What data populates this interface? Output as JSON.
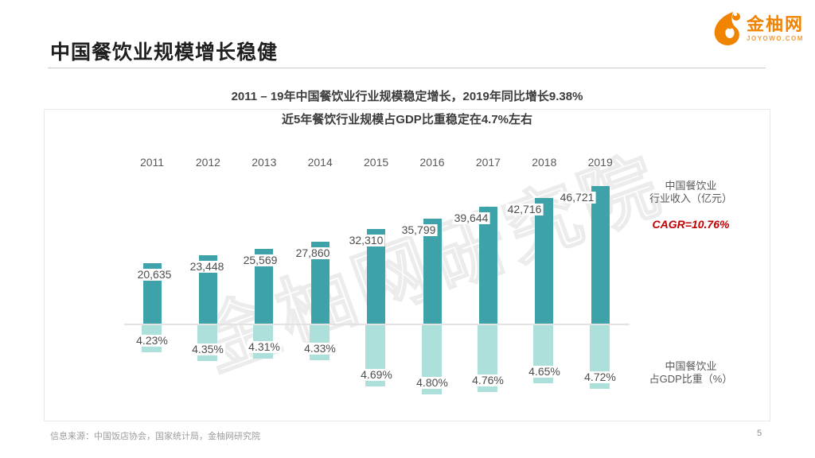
{
  "page": {
    "title": "中国餐饮业规模增长稳健",
    "source_note": "信息来源：中国饭店协会，国家统计局，金柚网研究院",
    "page_number": "5"
  },
  "logo": {
    "name": "金柚网",
    "domain": "JOYOWO.COM",
    "color": "#f08300"
  },
  "watermark": "金柚网研究院",
  "colors": {
    "revenue_bar": "#3da3a8",
    "gdp_bar": "#addfdb",
    "cagr_red": "#c00000",
    "axis_line": "#e3e3e3",
    "frame_border": "#e8e8e8"
  },
  "chart_data": {
    "type": "bar",
    "title": "2011 – 19年中国餐饮业行业规模稳定增长，2019年同比增长9.38%",
    "subtitle": "近5年餐饮行业规模占GDP比重稳定在4.7%左右",
    "categories": [
      "2011",
      "2012",
      "2013",
      "2014",
      "2015",
      "2016",
      "2017",
      "2018",
      "2019"
    ],
    "series": [
      {
        "name": "中国餐饮业行业收入（亿元）",
        "unit": "亿元",
        "color": "#3da3a8",
        "direction": "up",
        "values": [
          20635,
          23448,
          25569,
          27860,
          32310,
          35799,
          39644,
          42716,
          46721
        ],
        "labels": [
          "20,635",
          "23,448",
          "25,569",
          "27,860",
          "32,310",
          "35,799",
          "39,644",
          "42,716",
          "46,721"
        ]
      },
      {
        "name": "中国餐饮业占GDP比重（%）",
        "unit": "%",
        "color": "#addfdb",
        "direction": "down",
        "values": [
          4.23,
          4.35,
          4.31,
          4.33,
          4.69,
          4.8,
          4.76,
          4.65,
          4.72
        ],
        "labels": [
          "4.23%",
          "4.35%",
          "4.31%",
          "4.33%",
          "4.69%",
          "4.80%",
          "4.76%",
          "4.65%",
          "4.72%"
        ]
      }
    ],
    "right_labels": {
      "revenue": [
        "中国餐饮业",
        "行业收入（亿元）"
      ],
      "cagr": "CAGR=10.76%",
      "gdp": [
        "中国餐饮业",
        "占GDP比重（%）"
      ]
    },
    "axes": {
      "revenue_range": [
        0,
        46721
      ],
      "gdp_effective_range": [
        3.85,
        5.0
      ],
      "gridlines": false,
      "baseline_shown": true
    },
    "legend_position": "right-annotations"
  }
}
